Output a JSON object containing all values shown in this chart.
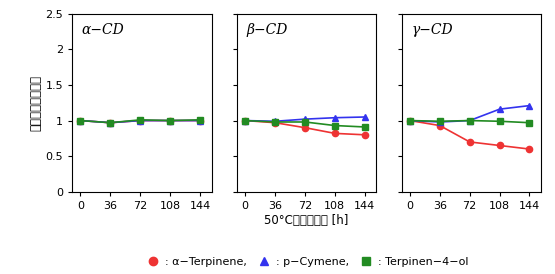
{
  "x": [
    0,
    36,
    72,
    108,
    144
  ],
  "panels": [
    {
      "title": "α−CD",
      "red": [
        1.0,
        0.97,
        1.0,
        1.0,
        1.0
      ],
      "blue": [
        1.0,
        0.97,
        1.0,
        1.0,
        1.0
      ],
      "green": [
        1.0,
        0.97,
        1.01,
        1.0,
        1.01
      ]
    },
    {
      "title": "β−CD",
      "red": [
        1.0,
        0.97,
        0.9,
        0.82,
        0.8
      ],
      "blue": [
        1.0,
        0.99,
        1.02,
        1.04,
        1.05
      ],
      "green": [
        1.0,
        0.98,
        0.98,
        0.93,
        0.91
      ]
    },
    {
      "title": "γ−CD",
      "red": [
        1.0,
        0.93,
        0.7,
        0.65,
        0.6
      ],
      "blue": [
        1.0,
        0.98,
        1.0,
        1.16,
        1.21
      ],
      "green": [
        1.0,
        0.99,
        1.0,
        0.99,
        0.97
      ]
    }
  ],
  "ylabel": "粉末中成分の変化",
  "xlabel": "50°Cの加熱時間 [h]",
  "ylim": [
    0,
    2.5
  ],
  "yticks": [
    0,
    0.5,
    1.0,
    1.5,
    2.0,
    2.5
  ],
  "xticks": [
    0,
    36,
    72,
    108,
    144
  ],
  "red_color": "#EE3333",
  "blue_color": "#3333EE",
  "green_color": "#228B22",
  "legend_label_alpha": "α−Terpinene",
  "legend_label_pcymene": "p−Cymene",
  "legend_label_terpinen": "Terpinen−4−ol",
  "title_fontsize": 10,
  "label_fontsize": 8.5,
  "tick_fontsize": 8,
  "legend_fontsize": 8
}
